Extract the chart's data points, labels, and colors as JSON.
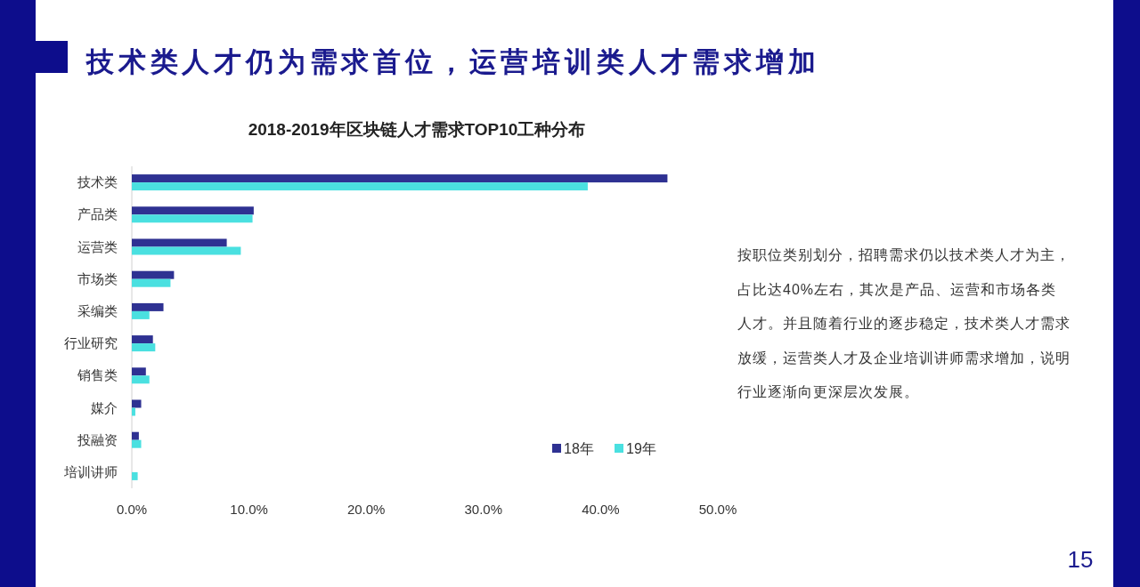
{
  "chart_data": {
    "type": "bar",
    "orientation": "horizontal",
    "title": "技术类人才仍为需求首位，运营培训类人才需求增加",
    "subtitle": "2018-2019年区块链人才需求TOP10工种分布",
    "categories": [
      "技术类",
      "产品类",
      "运营类",
      "市场类",
      "采编类",
      "行业研究",
      "销售类",
      "媒介",
      "投融资",
      "培训讲师"
    ],
    "series": [
      {
        "name": "18年",
        "color": "#2e3192",
        "values": [
          45.7,
          10.4,
          8.1,
          3.6,
          2.7,
          1.8,
          1.2,
          0.8,
          0.6,
          null
        ]
      },
      {
        "name": "19年",
        "color": "#4ae0e0",
        "values": [
          38.9,
          10.3,
          9.3,
          3.3,
          1.5,
          2.0,
          1.5,
          0.3,
          0.8,
          0.5
        ]
      }
    ],
    "xlim": [
      0,
      50
    ],
    "xticks": [
      {
        "value": 0,
        "label": "0.0%"
      },
      {
        "value": 10,
        "label": "10.0%"
      },
      {
        "value": 20,
        "label": "20.0%"
      },
      {
        "value": 30,
        "label": "30.0%"
      },
      {
        "value": 40,
        "label": "40.0%"
      },
      {
        "value": 50,
        "label": "50.0%"
      }
    ],
    "legend": "bottom right",
    "annotations": [
      "按职位类别划分，招聘需求仍以技术类人才为主，占比达40%左右，其次是产品、运营和市场各类人才。并且随着行业的逐步稳定，技术类人才需求放缓，运营类人才及企业培训讲师需求增加，说明行业逐渐向更深层次发展。",
      "15"
    ]
  }
}
